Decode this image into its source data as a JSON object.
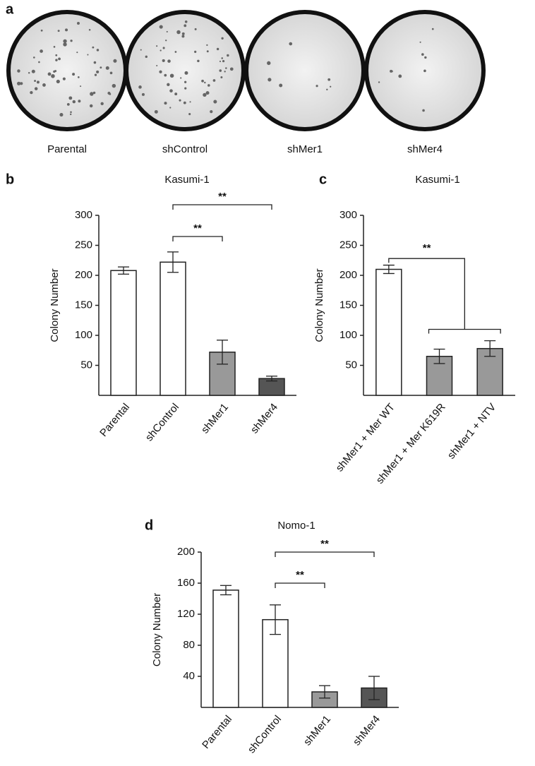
{
  "plates": {
    "label": "a",
    "names": [
      "Parental",
      "shControl",
      "shMer1",
      "shMer4"
    ]
  },
  "chart_data": [
    {
      "type": "bar",
      "panel_label": "b",
      "title": "Kasumi-1",
      "y_label": "Colony Number",
      "categories": [
        "Parental",
        "shControl",
        "shMer1",
        "shMer4"
      ],
      "values": [
        208,
        222,
        72,
        28
      ],
      "errors": [
        6,
        17,
        20,
        4
      ],
      "colors": [
        "#ffffff",
        "#ffffff",
        "#999999",
        "#555555"
      ],
      "ylim": [
        0,
        300
      ],
      "yticks": [
        50,
        100,
        150,
        200,
        250,
        300
      ],
      "annotations": [
        "**",
        "**"
      ]
    },
    {
      "type": "bar",
      "panel_label": "c",
      "title": "Kasumi-1",
      "y_label": "Colony Number",
      "categories": [
        "shMer1 + Mer WT",
        "shMer1 + Mer K619R",
        "shMer1 + NTV"
      ],
      "values": [
        210,
        65,
        78
      ],
      "errors": [
        7,
        12,
        13
      ],
      "colors": [
        "#ffffff",
        "#999999",
        "#999999"
      ],
      "ylim": [
        0,
        300
      ],
      "yticks": [
        50,
        100,
        150,
        200,
        250,
        300
      ],
      "annotations": [
        "**"
      ]
    },
    {
      "type": "bar",
      "panel_label": "d",
      "title": "Nomo-1",
      "y_label": "Colony Number",
      "categories": [
        "Parental",
        "shControl",
        "shMer1",
        "shMer4"
      ],
      "values": [
        151,
        113,
        20,
        25
      ],
      "errors": [
        6,
        19,
        8,
        15
      ],
      "colors": [
        "#ffffff",
        "#ffffff",
        "#999999",
        "#555555"
      ],
      "ylim": [
        0,
        200
      ],
      "yticks": [
        40,
        80,
        120,
        160,
        200
      ],
      "annotations": [
        "**",
        "**"
      ]
    }
  ]
}
